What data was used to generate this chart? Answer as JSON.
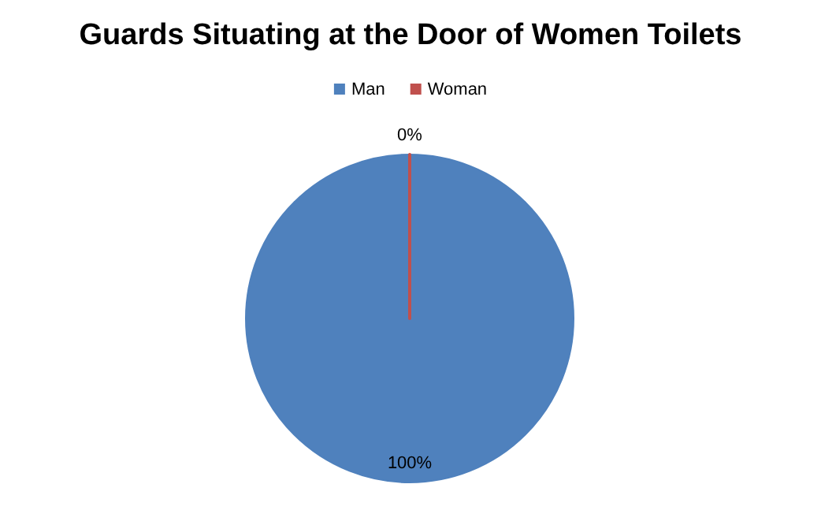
{
  "chart_data": {
    "type": "pie",
    "title": "Guards Situating at the Door of Women Toilets",
    "categories": [
      "Man",
      "Woman"
    ],
    "values": [
      100,
      0
    ],
    "colors": [
      "#4f81bd",
      "#c0504d"
    ],
    "value_labels": [
      "100%",
      "0%"
    ],
    "legend": "top"
  }
}
